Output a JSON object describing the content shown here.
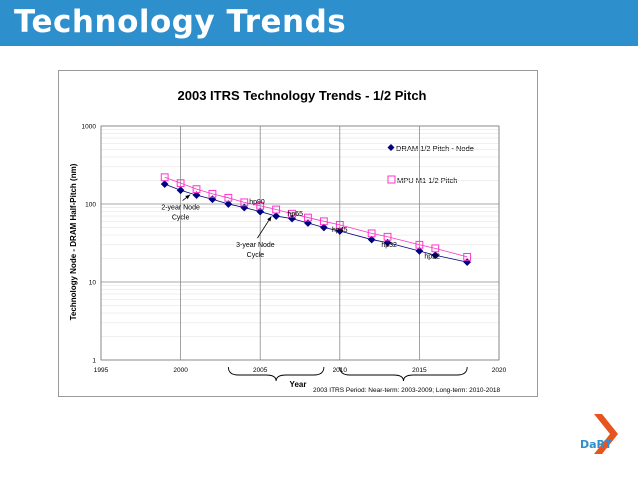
{
  "slide": {
    "title": "Technology Trends"
  },
  "chart_data": {
    "type": "scatter",
    "title": "2003 ITRS Technology Trends - 1/2 Pitch",
    "xlabel": "Year",
    "ylabel": "Technology Node - DRAM Half-Pitch (nm)",
    "xlim": [
      1995,
      2020
    ],
    "ylim": [
      1,
      1000
    ],
    "yscale": "log",
    "x_ticks": [
      "1995",
      "2000",
      "2005",
      "2010",
      "2015",
      "2020"
    ],
    "y_ticks": [
      "1",
      "10",
      "100",
      "1000"
    ],
    "grid": true,
    "legend_position": "right",
    "series": [
      {
        "name": "DRAM 1/2 Pitch - Node",
        "color": "#000080",
        "marker": "diamond",
        "x": [
          1999,
          2000,
          2001,
          2002,
          2003,
          2004,
          2005,
          2006,
          2007,
          2008,
          2009,
          2010,
          2012,
          2013,
          2015,
          2016,
          2018
        ],
        "y": [
          180,
          150,
          130,
          115,
          100,
          90,
          80,
          70,
          65,
          57,
          50,
          45,
          35,
          32,
          25,
          22,
          18
        ]
      },
      {
        "name": "MPU M1 1/2 Pitch",
        "color": "#ff33cc",
        "marker": "square",
        "x": [
          1999,
          2000,
          2001,
          2002,
          2003,
          2004,
          2005,
          2006,
          2007,
          2008,
          2009,
          2010,
          2012,
          2013,
          2015,
          2016,
          2018
        ],
        "y": [
          220,
          185,
          155,
          135,
          120,
          105,
          95,
          85,
          75,
          67,
          60,
          54,
          42,
          38,
          30,
          27,
          21
        ]
      }
    ],
    "annotations": [
      {
        "text": "hp90",
        "x": 2004.8,
        "y": 100
      },
      {
        "text": "hp65",
        "x": 2007.2,
        "y": 70
      },
      {
        "text": "hp45",
        "x": 2010.0,
        "y": 44
      },
      {
        "text": "hp32",
        "x": 2013.1,
        "y": 28
      },
      {
        "text": "hp22",
        "x": 2015.8,
        "y": 20
      }
    ],
    "callouts": [
      {
        "lines": [
          "2-year Node",
          "Cycle"
        ],
        "x": 2000.0,
        "y": 85,
        "arrow_to": [
          2000.6,
          148
        ]
      },
      {
        "lines": [
          "3-year Node",
          "Cycle"
        ],
        "x": 2004.7,
        "y": 28,
        "arrow_to": [
          2005.7,
          78
        ]
      }
    ],
    "period_note": "2003 ITRS Period: Near-term:  2003-2009; Long-term:  2010-2018",
    "periods": [
      {
        "name": "Near-term",
        "from": 2003,
        "to": 2009
      },
      {
        "name": "Long-term",
        "from": 2010,
        "to": 2018
      }
    ]
  },
  "logo": {
    "text": "DaRT",
    "colors": [
      "#e8541e",
      "#2e8fcd"
    ]
  }
}
